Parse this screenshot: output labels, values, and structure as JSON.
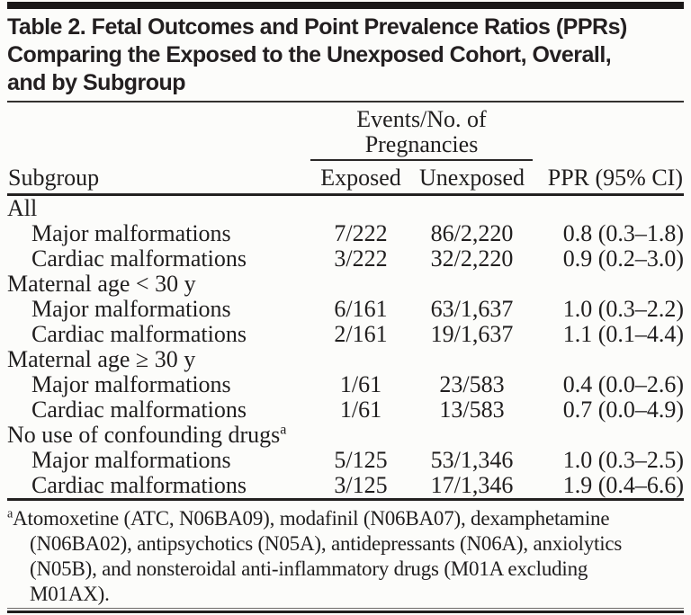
{
  "colors": {
    "background": "#fcfcfa",
    "ink": "#201e1e",
    "title_ink": "#231f20",
    "rule": "#232120"
  },
  "title": {
    "lines": [
      "Table 2. Fetal Outcomes and Point Prevalence Ratios (PPRs)",
      "Comparing the Exposed to the Unexposed Cohort, Overall,",
      "and by Subgroup"
    ]
  },
  "header": {
    "events_lines": [
      "Events/No. of",
      "Pregnancies"
    ],
    "subgroup": "Subgroup",
    "exposed": "Exposed",
    "unexposed": "Unexposed",
    "ppr": "PPR (95% CI)"
  },
  "rows": [
    {
      "type": "group",
      "label": "All"
    },
    {
      "type": "data",
      "label": "Major malformations",
      "exposed": "7/222",
      "unexposed": "86/2,220",
      "ppr": "0.8 (0.3–1.8)"
    },
    {
      "type": "data",
      "label": "Cardiac malformations",
      "exposed": "3/222",
      "unexposed": "32/2,220",
      "ppr": "0.9 (0.2–3.0)"
    },
    {
      "type": "group",
      "label": "Maternal age < 30 y"
    },
    {
      "type": "data",
      "label": "Major malformations",
      "exposed": "6/161",
      "unexposed": "63/1,637",
      "ppr": "1.0 (0.3–2.2)"
    },
    {
      "type": "data",
      "label": "Cardiac malformations",
      "exposed": "2/161",
      "unexposed": "19/1,637",
      "ppr": "1.1 (0.1–4.4)"
    },
    {
      "type": "group",
      "label": "Maternal age ≥ 30 y"
    },
    {
      "type": "data",
      "label": "Major malformations",
      "exposed": "1/61",
      "unexposed": "23/583",
      "ppr": "0.4 (0.0–2.6)"
    },
    {
      "type": "data",
      "label": "Cardiac malformations",
      "exposed": "1/61",
      "unexposed": "13/583",
      "ppr": "0.7 (0.0–4.9)"
    },
    {
      "type": "group",
      "label": "No use of confounding drugs",
      "marker": "a"
    },
    {
      "type": "data",
      "label": "Major malformations",
      "exposed": "5/125",
      "unexposed": "53/1,346",
      "ppr": "1.0 (0.3–2.5)"
    },
    {
      "type": "data",
      "label": "Cardiac malformations",
      "exposed": "3/125",
      "unexposed": "17/1,346",
      "ppr": "1.9 (0.4–6.6)"
    }
  ],
  "footnote": {
    "marker": "a",
    "lines": [
      "Atomoxetine (ATC, N06BA09), modafinil (N06BA07), dexamphetamine",
      "(N06BA02), antipsychotics (N05A), antidepressants (N06A), anxiolytics",
      "(N05B), and nonsteroidal anti-inflammatory drugs (M01A excluding",
      "M01AX)."
    ]
  }
}
